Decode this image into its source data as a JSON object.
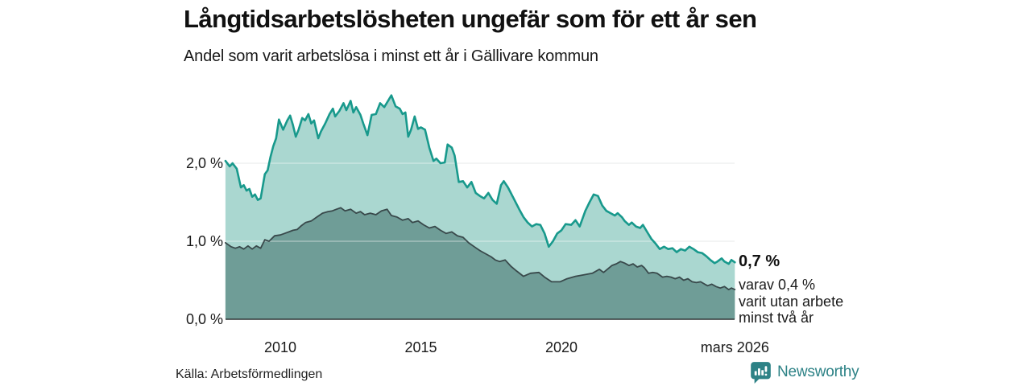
{
  "header": {
    "title": "Långtidsarbetslösheten ungefär som för ett år sen",
    "subtitle": "Andel som varit arbetslösa i minst ett år i Gällivare kommun"
  },
  "chart_data": {
    "type": "area",
    "title": "Långtidsarbetslösheten ungefär som för ett år sen",
    "subtitle": "Andel som varit arbetslösa i minst ett år i Gällivare kommun",
    "xlabel": "",
    "ylabel": "",
    "xlim": [
      2008.05,
      2026.21
    ],
    "ylim": [
      0,
      2.95
    ],
    "grid": "horizontal",
    "legend_position": "none",
    "y_ticks": [
      {
        "value": 0,
        "label": "0,0 %"
      },
      {
        "value": 1,
        "label": "1,0 %"
      },
      {
        "value": 2,
        "label": "2,0 %"
      }
    ],
    "x_ticks": [
      {
        "t": 2010,
        "label": "2010"
      },
      {
        "t": 2015,
        "label": "2015"
      },
      {
        "t": 2020,
        "label": "2020"
      },
      {
        "t": 2026.17,
        "label": "mars 2026"
      }
    ],
    "series": [
      {
        "name": "Andel arbetslösa minst ett år",
        "color": "#18998c",
        "fill": "#aad7d0",
        "end_value_label": "0,7 %",
        "points": [
          [
            2008.05,
            2.03
          ],
          [
            2008.2,
            1.96
          ],
          [
            2008.3,
            2.0
          ],
          [
            2008.45,
            1.93
          ],
          [
            2008.6,
            1.69
          ],
          [
            2008.7,
            1.72
          ],
          [
            2008.8,
            1.65
          ],
          [
            2008.9,
            1.67
          ],
          [
            2009.0,
            1.57
          ],
          [
            2009.1,
            1.6
          ],
          [
            2009.2,
            1.53
          ],
          [
            2009.3,
            1.55
          ],
          [
            2009.45,
            1.86
          ],
          [
            2009.55,
            1.91
          ],
          [
            2009.65,
            2.08
          ],
          [
            2009.75,
            2.22
          ],
          [
            2009.85,
            2.32
          ],
          [
            2009.95,
            2.56
          ],
          [
            2010.1,
            2.43
          ],
          [
            2010.25,
            2.55
          ],
          [
            2010.35,
            2.61
          ],
          [
            2010.45,
            2.49
          ],
          [
            2010.55,
            2.34
          ],
          [
            2010.65,
            2.43
          ],
          [
            2010.78,
            2.58
          ],
          [
            2010.88,
            2.55
          ],
          [
            2011.0,
            2.63
          ],
          [
            2011.1,
            2.51
          ],
          [
            2011.2,
            2.55
          ],
          [
            2011.35,
            2.32
          ],
          [
            2011.45,
            2.41
          ],
          [
            2011.6,
            2.51
          ],
          [
            2011.75,
            2.63
          ],
          [
            2011.87,
            2.7
          ],
          [
            2011.95,
            2.6
          ],
          [
            2012.1,
            2.67
          ],
          [
            2012.25,
            2.77
          ],
          [
            2012.35,
            2.68
          ],
          [
            2012.5,
            2.8
          ],
          [
            2012.6,
            2.65
          ],
          [
            2012.7,
            2.72
          ],
          [
            2012.85,
            2.62
          ],
          [
            2012.95,
            2.51
          ],
          [
            2013.1,
            2.36
          ],
          [
            2013.25,
            2.62
          ],
          [
            2013.4,
            2.63
          ],
          [
            2013.55,
            2.77
          ],
          [
            2013.7,
            2.72
          ],
          [
            2013.95,
            2.87
          ],
          [
            2014.1,
            2.73
          ],
          [
            2014.25,
            2.7
          ],
          [
            2014.35,
            2.63
          ],
          [
            2014.45,
            2.65
          ],
          [
            2014.55,
            2.34
          ],
          [
            2014.65,
            2.43
          ],
          [
            2014.78,
            2.6
          ],
          [
            2014.9,
            2.44
          ],
          [
            2015.0,
            2.46
          ],
          [
            2015.15,
            2.43
          ],
          [
            2015.3,
            2.2
          ],
          [
            2015.45,
            2.03
          ],
          [
            2015.55,
            2.06
          ],
          [
            2015.7,
            2.0
          ],
          [
            2015.85,
            2.01
          ],
          [
            2015.95,
            2.24
          ],
          [
            2016.1,
            2.2
          ],
          [
            2016.2,
            2.1
          ],
          [
            2016.35,
            1.76
          ],
          [
            2016.5,
            1.77
          ],
          [
            2016.65,
            1.69
          ],
          [
            2016.8,
            1.76
          ],
          [
            2016.95,
            1.62
          ],
          [
            2017.1,
            1.58
          ],
          [
            2017.25,
            1.55
          ],
          [
            2017.4,
            1.62
          ],
          [
            2017.55,
            1.53
          ],
          [
            2017.7,
            1.48
          ],
          [
            2017.85,
            1.72
          ],
          [
            2017.95,
            1.77
          ],
          [
            2018.1,
            1.69
          ],
          [
            2018.3,
            1.55
          ],
          [
            2018.5,
            1.41
          ],
          [
            2018.65,
            1.31
          ],
          [
            2018.8,
            1.24
          ],
          [
            2018.95,
            1.19
          ],
          [
            2019.1,
            1.22
          ],
          [
            2019.25,
            1.21
          ],
          [
            2019.4,
            1.1
          ],
          [
            2019.55,
            0.93
          ],
          [
            2019.7,
            1.0
          ],
          [
            2019.85,
            1.1
          ],
          [
            2020.0,
            1.14
          ],
          [
            2020.15,
            1.22
          ],
          [
            2020.35,
            1.21
          ],
          [
            2020.5,
            1.27
          ],
          [
            2020.65,
            1.19
          ],
          [
            2020.85,
            1.39
          ],
          [
            2021.0,
            1.5
          ],
          [
            2021.15,
            1.6
          ],
          [
            2021.3,
            1.58
          ],
          [
            2021.45,
            1.46
          ],
          [
            2021.6,
            1.39
          ],
          [
            2021.75,
            1.36
          ],
          [
            2021.9,
            1.33
          ],
          [
            2022.0,
            1.36
          ],
          [
            2022.15,
            1.31
          ],
          [
            2022.25,
            1.26
          ],
          [
            2022.4,
            1.21
          ],
          [
            2022.5,
            1.24
          ],
          [
            2022.65,
            1.19
          ],
          [
            2022.8,
            1.17
          ],
          [
            2022.9,
            1.21
          ],
          [
            2023.05,
            1.12
          ],
          [
            2023.2,
            1.03
          ],
          [
            2023.35,
            0.97
          ],
          [
            2023.5,
            0.9
          ],
          [
            2023.65,
            0.93
          ],
          [
            2023.8,
            0.9
          ],
          [
            2023.95,
            0.91
          ],
          [
            2024.1,
            0.86
          ],
          [
            2024.25,
            0.9
          ],
          [
            2024.4,
            0.88
          ],
          [
            2024.55,
            0.93
          ],
          [
            2024.7,
            0.9
          ],
          [
            2024.85,
            0.86
          ],
          [
            2025.0,
            0.85
          ],
          [
            2025.15,
            0.81
          ],
          [
            2025.3,
            0.76
          ],
          [
            2025.45,
            0.72
          ],
          [
            2025.55,
            0.74
          ],
          [
            2025.7,
            0.78
          ],
          [
            2025.8,
            0.74
          ],
          [
            2025.95,
            0.71
          ],
          [
            2026.05,
            0.76
          ],
          [
            2026.17,
            0.73
          ]
        ]
      },
      {
        "name": "varav varit utan arbete minst två år",
        "color": "#39494b",
        "fill": "#6f9d97",
        "end_value_label": "0,4 %",
        "points": [
          [
            2008.05,
            0.98
          ],
          [
            2008.25,
            0.93
          ],
          [
            2008.4,
            0.91
          ],
          [
            2008.55,
            0.93
          ],
          [
            2008.7,
            0.9
          ],
          [
            2008.85,
            0.94
          ],
          [
            2009.0,
            0.9
          ],
          [
            2009.15,
            0.94
          ],
          [
            2009.3,
            0.91
          ],
          [
            2009.45,
            1.02
          ],
          [
            2009.6,
            1.0
          ],
          [
            2009.8,
            1.07
          ],
          [
            2010.0,
            1.08
          ],
          [
            2010.15,
            1.1
          ],
          [
            2010.3,
            1.12
          ],
          [
            2010.45,
            1.14
          ],
          [
            2010.6,
            1.15
          ],
          [
            2010.75,
            1.2
          ],
          [
            2010.9,
            1.24
          ],
          [
            2011.1,
            1.26
          ],
          [
            2011.3,
            1.31
          ],
          [
            2011.5,
            1.36
          ],
          [
            2011.7,
            1.38
          ],
          [
            2011.85,
            1.39
          ],
          [
            2012.0,
            1.41
          ],
          [
            2012.15,
            1.43
          ],
          [
            2012.3,
            1.39
          ],
          [
            2012.5,
            1.41
          ],
          [
            2012.7,
            1.36
          ],
          [
            2012.85,
            1.38
          ],
          [
            2013.0,
            1.34
          ],
          [
            2013.2,
            1.36
          ],
          [
            2013.4,
            1.34
          ],
          [
            2013.6,
            1.39
          ],
          [
            2013.8,
            1.41
          ],
          [
            2013.95,
            1.33
          ],
          [
            2014.15,
            1.31
          ],
          [
            2014.35,
            1.27
          ],
          [
            2014.55,
            1.29
          ],
          [
            2014.7,
            1.24
          ],
          [
            2014.9,
            1.26
          ],
          [
            2015.1,
            1.21
          ],
          [
            2015.3,
            1.17
          ],
          [
            2015.5,
            1.19
          ],
          [
            2015.7,
            1.14
          ],
          [
            2015.9,
            1.1
          ],
          [
            2016.1,
            1.12
          ],
          [
            2016.3,
            1.07
          ],
          [
            2016.5,
            1.05
          ],
          [
            2016.7,
            0.98
          ],
          [
            2016.9,
            0.93
          ],
          [
            2017.1,
            0.88
          ],
          [
            2017.3,
            0.84
          ],
          [
            2017.5,
            0.8
          ],
          [
            2017.65,
            0.76
          ],
          [
            2017.8,
            0.74
          ],
          [
            2018.0,
            0.76
          ],
          [
            2018.2,
            0.68
          ],
          [
            2018.4,
            0.62
          ],
          [
            2018.65,
            0.55
          ],
          [
            2018.9,
            0.59
          ],
          [
            2019.2,
            0.6
          ],
          [
            2019.4,
            0.54
          ],
          [
            2019.65,
            0.48
          ],
          [
            2019.95,
            0.48
          ],
          [
            2020.2,
            0.52
          ],
          [
            2020.5,
            0.55
          ],
          [
            2020.8,
            0.57
          ],
          [
            2021.1,
            0.59
          ],
          [
            2021.35,
            0.64
          ],
          [
            2021.5,
            0.6
          ],
          [
            2021.8,
            0.69
          ],
          [
            2021.95,
            0.71
          ],
          [
            2022.1,
            0.74
          ],
          [
            2022.25,
            0.72
          ],
          [
            2022.4,
            0.69
          ],
          [
            2022.55,
            0.71
          ],
          [
            2022.7,
            0.67
          ],
          [
            2022.85,
            0.69
          ],
          [
            2022.95,
            0.66
          ],
          [
            2023.1,
            0.59
          ],
          [
            2023.25,
            0.6
          ],
          [
            2023.4,
            0.59
          ],
          [
            2023.6,
            0.54
          ],
          [
            2023.75,
            0.55
          ],
          [
            2023.9,
            0.54
          ],
          [
            2024.05,
            0.52
          ],
          [
            2024.2,
            0.54
          ],
          [
            2024.35,
            0.5
          ],
          [
            2024.5,
            0.52
          ],
          [
            2024.65,
            0.48
          ],
          [
            2024.8,
            0.47
          ],
          [
            2024.95,
            0.48
          ],
          [
            2025.1,
            0.45
          ],
          [
            2025.2,
            0.43
          ],
          [
            2025.35,
            0.45
          ],
          [
            2025.5,
            0.42
          ],
          [
            2025.65,
            0.4
          ],
          [
            2025.8,
            0.42
          ],
          [
            2025.95,
            0.38
          ],
          [
            2026.05,
            0.4
          ],
          [
            2026.17,
            0.38
          ]
        ]
      }
    ]
  },
  "annotation": {
    "value": "0,7 %",
    "detail_lines": [
      "varav 0,4 %",
      "varit utan arbete",
      "minst två år"
    ]
  },
  "footer": {
    "source": "Källa: Arbetsförmedlingen",
    "brand": "Newsworthy",
    "brand_color": "#2d8286"
  },
  "colors": {
    "grid": "#e0e3e3",
    "baseline": "#2f3333",
    "light_area": "#aad7d0",
    "dark_area": "#6f9d97",
    "teal_line": "#18998c",
    "dark_line": "#39494b"
  }
}
